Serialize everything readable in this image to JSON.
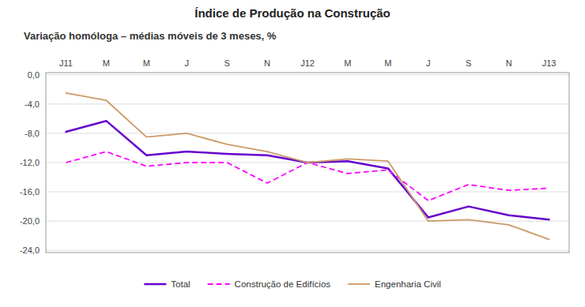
{
  "chart_data": {
    "type": "line",
    "title": "Índice de Produção na Construção",
    "subtitle": "Variação homóloga – médias móveis de 3 meses, %",
    "categories": [
      "J11",
      "M",
      "M",
      "J",
      "S",
      "N",
      "J12",
      "M",
      "M",
      "J",
      "S",
      "N",
      "J13"
    ],
    "series": [
      {
        "name": "Total",
        "color": "#6600cc",
        "line_style": "solid",
        "values": [
          -7.8,
          -6.3,
          -11.0,
          -10.5,
          -10.8,
          -11.0,
          -12.0,
          -11.8,
          -12.8,
          -19.5,
          -18.0,
          -19.2,
          -19.8
        ]
      },
      {
        "name": "Construção de Edifícios",
        "color": "#ff00ff",
        "line_style": "dashed",
        "values": [
          -12.0,
          -10.5,
          -12.5,
          -12.0,
          -12.0,
          -14.8,
          -12.0,
          -13.5,
          -13.0,
          -17.2,
          -15.0,
          -15.8,
          -15.5
        ]
      },
      {
        "name": "Engenharia Civil",
        "color": "#cc9966",
        "line_style": "solid",
        "values": [
          -2.5,
          -3.5,
          -8.5,
          -8.0,
          -9.5,
          -10.5,
          -12.0,
          -11.5,
          -11.8,
          -20.0,
          -19.8,
          -20.5,
          -22.5
        ]
      }
    ],
    "ylim": [
      -24.3,
      0.3
    ],
    "yticks": [
      {
        "value": 0.0,
        "label": "0,0"
      },
      {
        "value": -4.0,
        "label": "-4,0"
      },
      {
        "value": -8.0,
        "label": "-8,0"
      },
      {
        "value": -12.0,
        "label": "-12,0"
      },
      {
        "value": -16.0,
        "label": "-16,0"
      },
      {
        "value": -20.0,
        "label": "-20,0"
      },
      {
        "value": -24.0,
        "label": "-24,0"
      }
    ],
    "grid": true,
    "legend": "bottom"
  }
}
